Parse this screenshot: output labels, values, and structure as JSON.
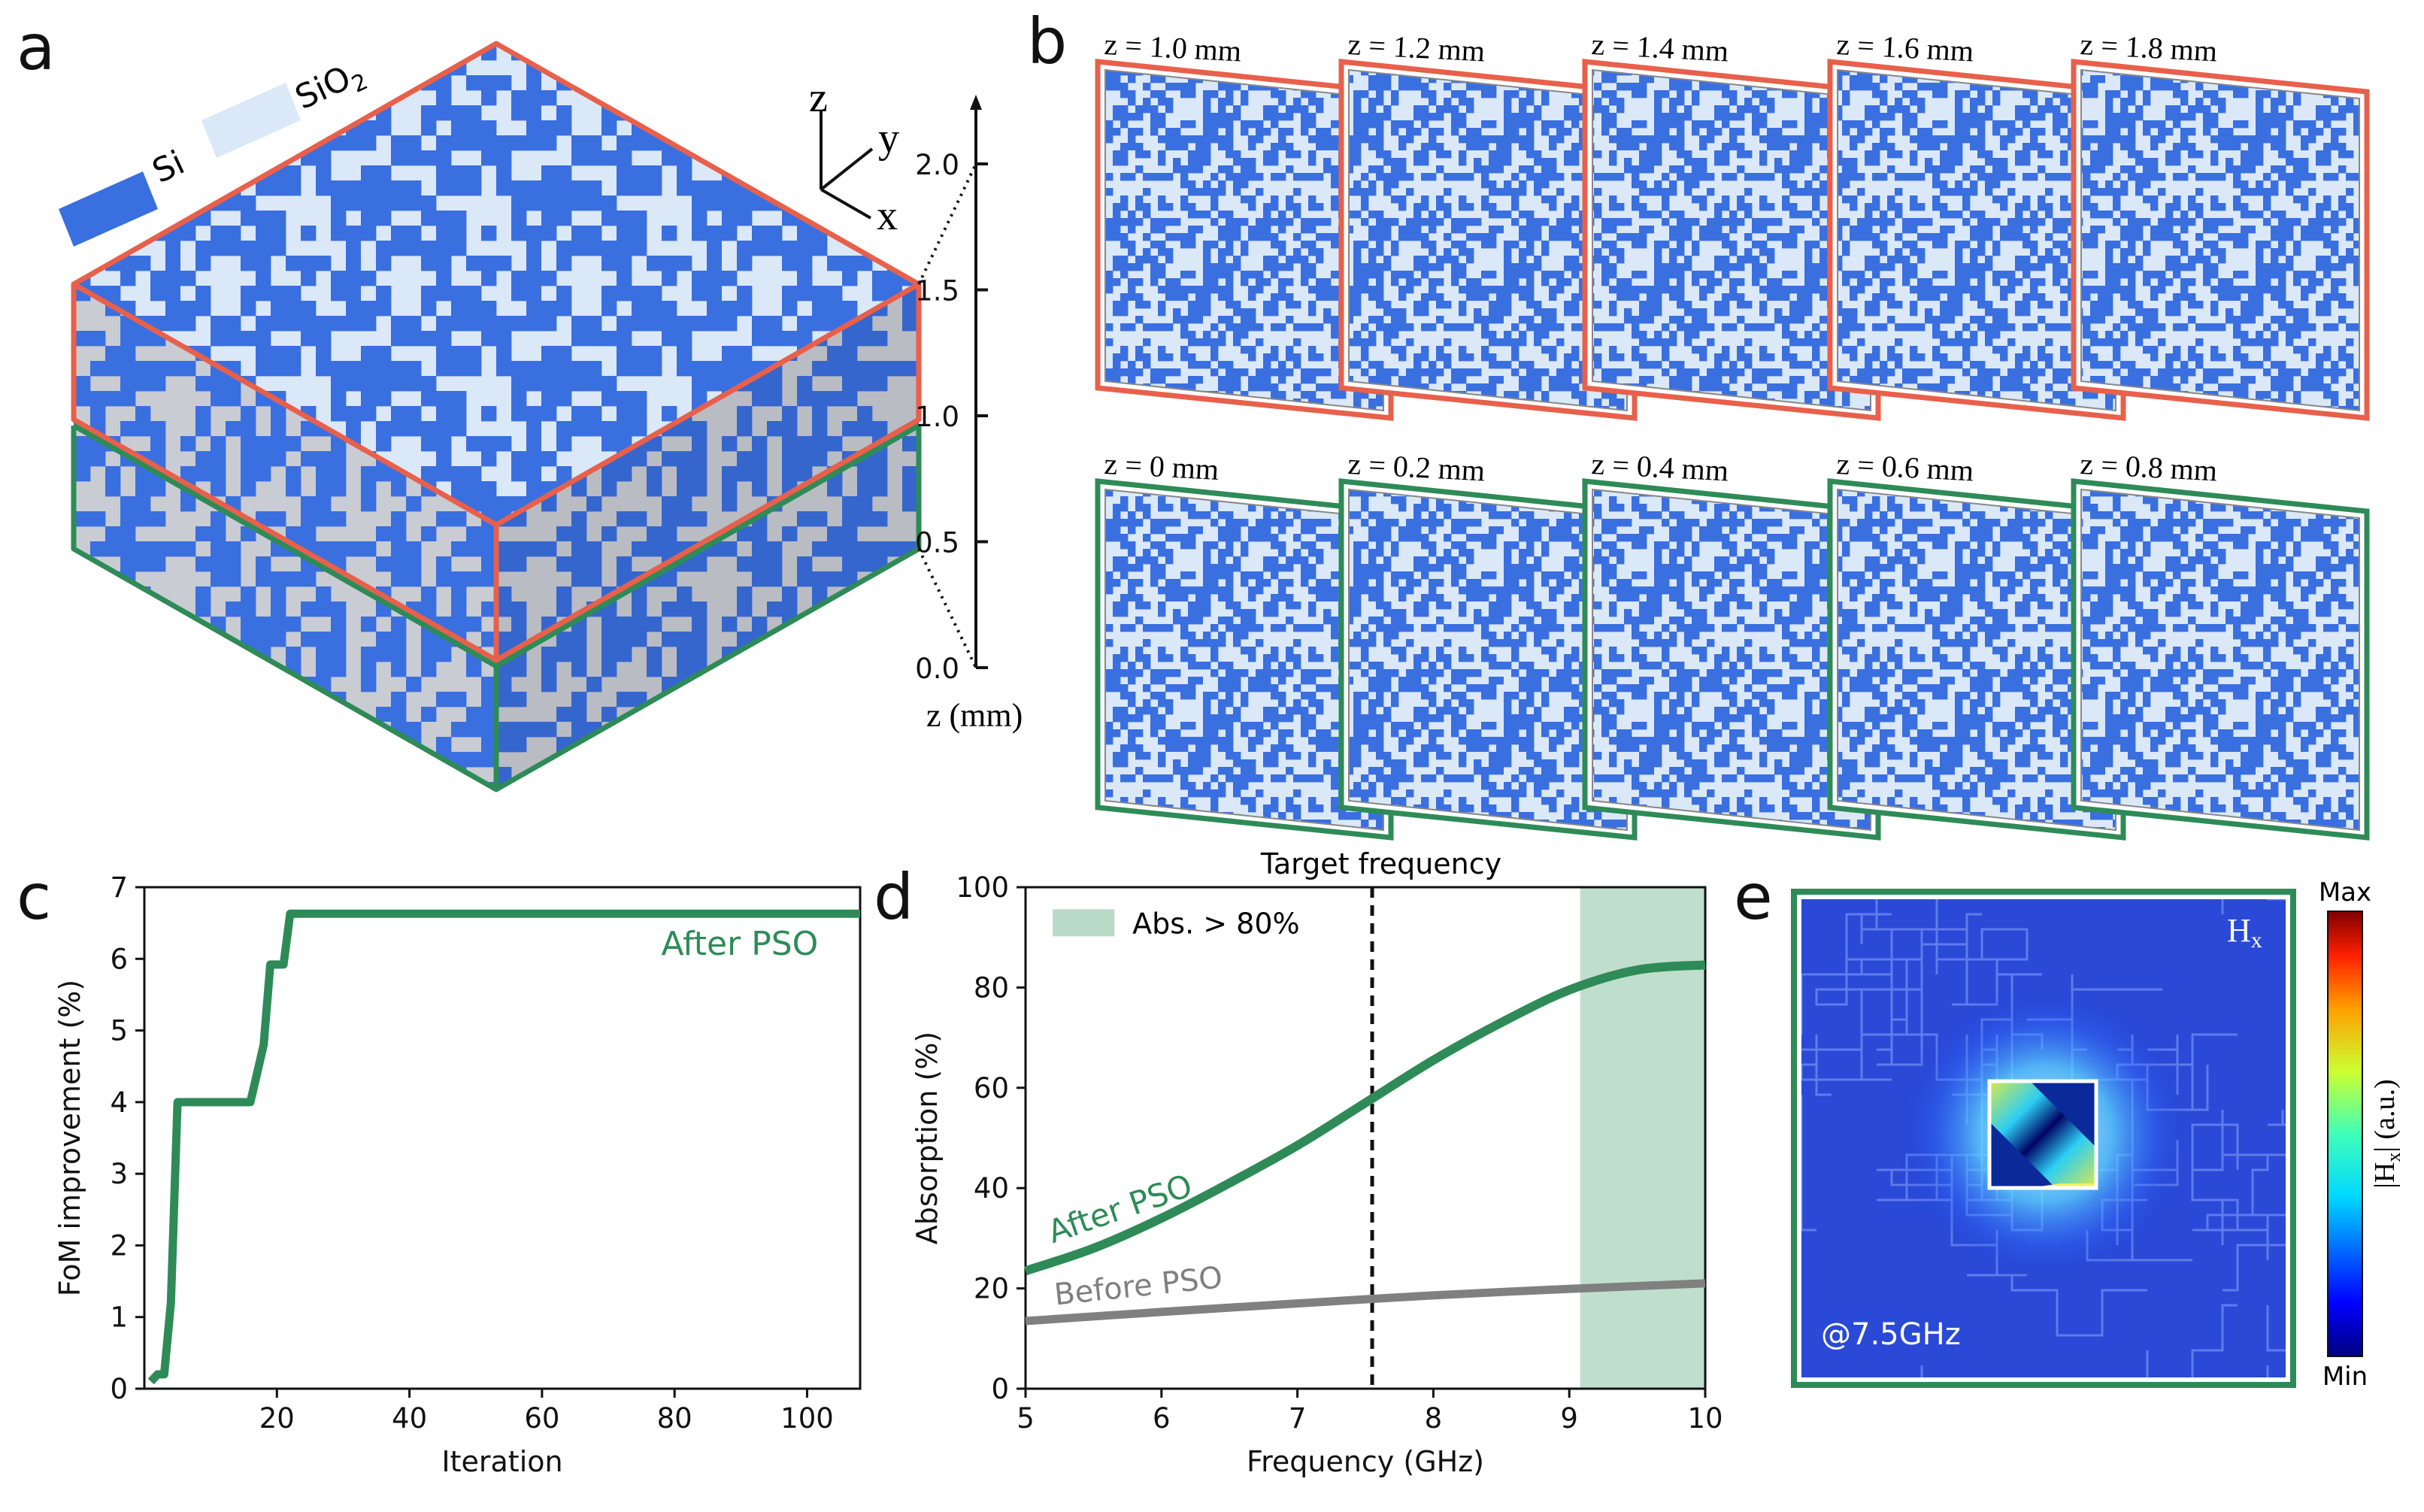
{
  "panel_labels": {
    "a": "a",
    "b": "b",
    "c": "c",
    "d": "d",
    "e": "e"
  },
  "colors": {
    "si": "#3a6fe0",
    "sio2": "#dbe8f8",
    "side_gray": "#c9ccd3",
    "upper_frame": "#e8604b",
    "lower_frame": "#2e8b57",
    "after_pso": "#2e8b57",
    "before_pso": "#808080",
    "band": "#b9dac6"
  },
  "panel_a": {
    "legend": {
      "si": "Si",
      "sio2": "SiO",
      "sio2_sub": "2"
    },
    "axes_labels": {
      "z": "z",
      "y": "y",
      "x": "x"
    },
    "scale": {
      "label": "z (mm)",
      "ticks": [
        "2.0",
        "1.5",
        "1.0",
        "0.5",
        "0.0"
      ]
    }
  },
  "panel_b": {
    "upper_slices": [
      "z = 1.0 mm",
      "z = 1.2 mm",
      "z = 1.4 mm",
      "z = 1.6 mm",
      "z = 1.8 mm"
    ],
    "lower_slices": [
      "z = 0 mm",
      "z = 0.2 mm",
      "z = 0.4 mm",
      "z = 0.6 mm",
      "z = 0.8 mm"
    ]
  },
  "chart_data": [
    {
      "id": "c",
      "type": "line",
      "title": "",
      "xlabel": "Iteration",
      "ylabel": "FoM improvement (%)",
      "xlim": [
        0,
        108
      ],
      "ylim": [
        0,
        7
      ],
      "xticks": [
        20,
        40,
        60,
        80,
        100
      ],
      "yticks": [
        0,
        1,
        2,
        3,
        4,
        5,
        6,
        7
      ],
      "annotation": "After PSO",
      "series": [
        {
          "name": "After PSO",
          "x": [
            1,
            2,
            3,
            4,
            5,
            16,
            17,
            18,
            19,
            20,
            21,
            22,
            108
          ],
          "y": [
            0.1,
            0.2,
            0.2,
            1.2,
            4.0,
            4.0,
            4.4,
            4.8,
            5.92,
            5.92,
            5.92,
            6.63,
            6.63
          ]
        }
      ]
    },
    {
      "id": "d",
      "type": "line",
      "title": "Target frequency",
      "xlabel": "Frequency (GHz)",
      "ylabel": "Absorption (%)",
      "xlim": [
        5,
        10
      ],
      "ylim": [
        0,
        100
      ],
      "xticks": [
        5,
        6,
        7,
        8,
        9,
        10
      ],
      "yticks": [
        0,
        20,
        40,
        60,
        80,
        100
      ],
      "target_frequency": 7.55,
      "band": {
        "x0": 9.08,
        "x1": 10,
        "label": "Abs. > 80%"
      },
      "series": [
        {
          "name": "After PSO",
          "x": [
            5.0,
            5.5,
            6.0,
            6.5,
            7.0,
            7.5,
            8.0,
            8.5,
            9.0,
            9.5,
            10.0
          ],
          "y": [
            23.5,
            28,
            34,
            41,
            48.5,
            57,
            65.5,
            73,
            79.5,
            83.5,
            84.5
          ]
        },
        {
          "name": "Before PSO",
          "x": [
            5.0,
            6.0,
            7.0,
            8.0,
            9.0,
            10.0
          ],
          "y": [
            13.5,
            15.3,
            17,
            18.6,
            19.9,
            21
          ]
        }
      ]
    },
    {
      "id": "e",
      "type": "heatmap",
      "field_label": "H",
      "field_sub": "x",
      "frequency_label": "@7.5GHz",
      "colorbar": {
        "max": "Max",
        "min": "Min",
        "label_prefix": "|H",
        "label_sub": "x",
        "label_suffix": "| (a.u.)"
      }
    }
  ]
}
